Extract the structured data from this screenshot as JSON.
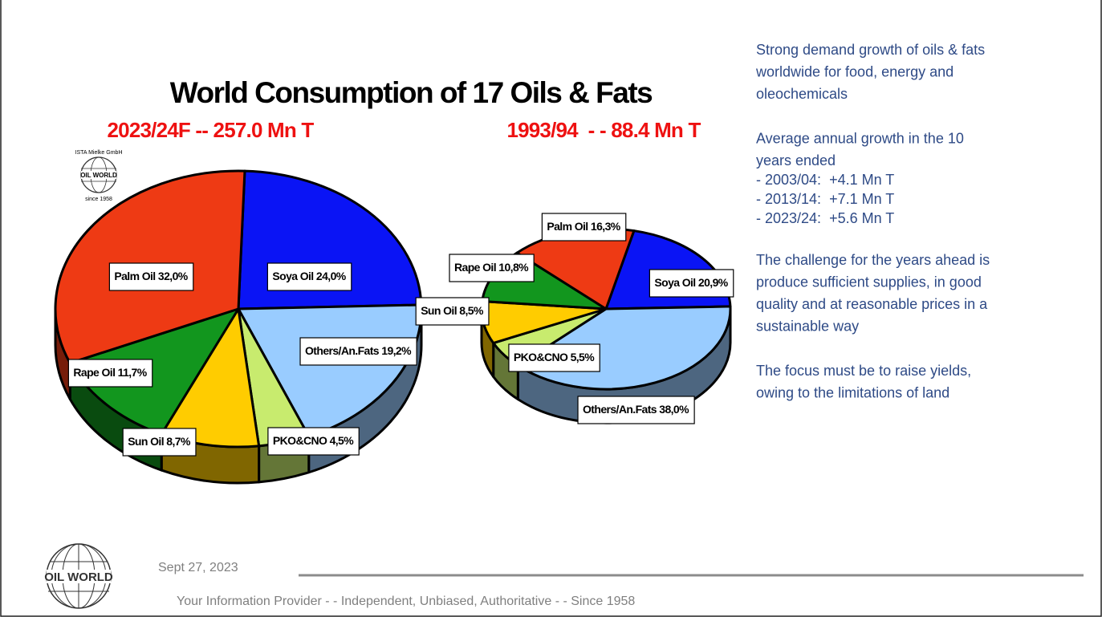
{
  "title": "World Consumption of 17 Oils & Fats",
  "chart_data": [
    {
      "type": "pie3d",
      "title": "2023/24F -- 257.0 Mn T",
      "categories": [
        "Soya Oil",
        "Others/An.Fats",
        "PKO&CNO",
        "Sun Oil",
        "Rape Oil",
        "Palm Oil"
      ],
      "values": [
        24.0,
        19.2,
        4.5,
        8.7,
        11.7,
        32.0
      ],
      "value_labels": [
        "24,0%",
        "19,2%",
        "4,5%",
        "8,7%",
        "11,7%",
        "32,0%"
      ],
      "colors": [
        "#0a14f5",
        "#99ccff",
        "#c8eb6e",
        "#ffcc00",
        "#12961e",
        "#ee3a14"
      ]
    },
    {
      "type": "pie3d",
      "title": "1993/94  - - 88.4 Mn T",
      "categories": [
        "Soya Oil",
        "Others/An.Fats",
        "PKO&CNO",
        "Sun Oil",
        "Rape Oil",
        "Palm Oil"
      ],
      "values": [
        20.9,
        38.0,
        5.5,
        8.5,
        10.8,
        16.3
      ],
      "value_labels": [
        "20,9%",
        "38,0%",
        "5,5%",
        "8,5%",
        "10,8%",
        "16,3%"
      ],
      "colors": [
        "#0a14f5",
        "#99ccff",
        "#c8eb6e",
        "#ffcc00",
        "#12961e",
        "#ee3a14"
      ]
    }
  ],
  "notes": [
    [
      "Strong demand growth of oils & fats",
      "worldwide for food, energy and",
      "oleochemicals"
    ],
    [
      "Average annual growth in the 10",
      "years ended",
      "- 2003/04:  +4.1 Mn T",
      "- 2013/14:  +7.1 Mn T",
      "- 2023/24:  +5.6 Mn T"
    ],
    [
      "The challenge for the years ahead is",
      "produce sufficient supplies, in good",
      "quality and at reasonable prices in a",
      "sustainable way"
    ],
    [
      "The focus must be to raise yields,",
      "owing to the limitations of land"
    ]
  ],
  "logo": {
    "name": "OIL WORLD",
    "company": "ISTA Mielke GmbH",
    "since": "since 1958"
  },
  "footer": {
    "date": "Sept 27, 2023",
    "tagline": "Your Information Provider - - Independent, Unbiased, Authoritative - - Since 1958"
  }
}
